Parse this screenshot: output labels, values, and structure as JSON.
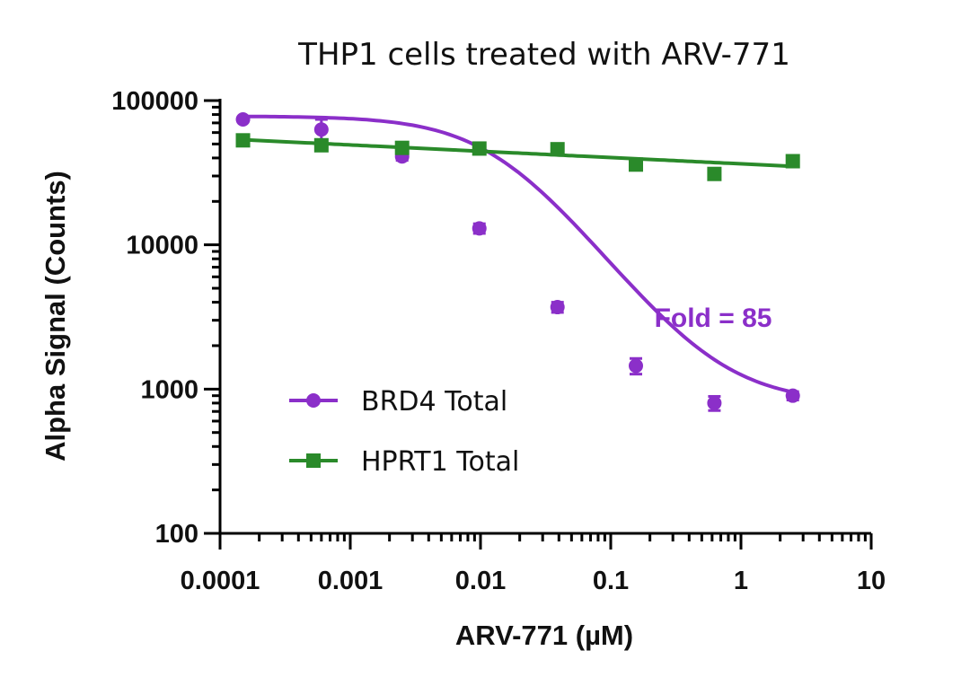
{
  "chart_data": {
    "type": "scatter",
    "title": "THP1 cells treated with ARV-771",
    "xlabel": "ARV-771 (µM)",
    "ylabel": "Alpha Signal (Counts)",
    "xscale": "log",
    "yscale": "log",
    "xlim": [
      0.0001,
      10
    ],
    "ylim": [
      100,
      100000
    ],
    "xticks": [
      "0.0001",
      "0.001",
      "0.01",
      "0.1",
      "1",
      "10"
    ],
    "yticks": [
      "100",
      "1000",
      "10000",
      "100000"
    ],
    "grid": false,
    "legend_position": "bottom-left",
    "annotation": "Fold = 85",
    "series": [
      {
        "name": "BRD4 Total",
        "marker": "circle",
        "color": "#8B2FC9",
        "x": [
          0.00015,
          0.0006,
          0.0025,
          0.0098,
          0.039,
          0.156,
          0.625,
          2.5
        ],
        "y": [
          74000,
          63000,
          41000,
          13000,
          3700,
          1450,
          800,
          900
        ],
        "error": [
          2500,
          11000,
          2500,
          1000,
          300,
          180,
          90,
          60
        ],
        "fit": {
          "bottom": 800,
          "top": 78000,
          "ec50": 0.014,
          "hill": 1.2
        }
      },
      {
        "name": "HPRT1 Total",
        "marker": "square",
        "color": "#2A8A2A",
        "x": [
          0.00015,
          0.0006,
          0.0025,
          0.0098,
          0.039,
          0.156,
          0.625,
          2.5
        ],
        "y": [
          53000,
          49000,
          47000,
          46500,
          46000,
          36000,
          31000,
          38000
        ],
        "fit": {
          "start": 53500,
          "end": 35000
        }
      }
    ]
  }
}
